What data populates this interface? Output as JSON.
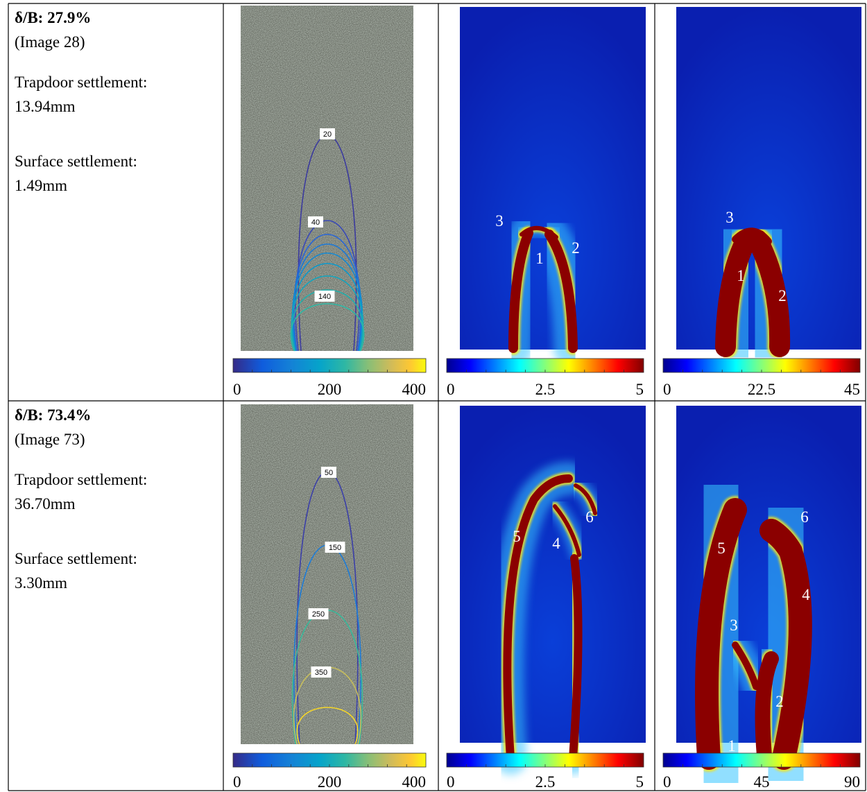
{
  "rows": [
    {
      "title": "δ/B: 27.9%",
      "image": "(Image 28)",
      "trapdoor_label": "Trapdoor settlement:",
      "trapdoor_value": "13.94mm",
      "surface_label": "Surface settlement:",
      "surface_value": "1.49mm",
      "contour_labels": [
        "20",
        "40",
        "140"
      ],
      "colorbars": [
        [
          "0",
          "200",
          "400"
        ],
        [
          "0",
          "2.5",
          "5"
        ],
        [
          "0",
          "22.5",
          "45"
        ]
      ],
      "strain_labels": [
        "3",
        "1",
        "2"
      ],
      "shear_labels": [
        "3",
        "1",
        "2"
      ]
    },
    {
      "title": "δ/B: 73.4%",
      "image": "(Image 73)",
      "trapdoor_label": "Trapdoor settlement:",
      "trapdoor_value": "36.70mm",
      "surface_label": "Surface settlement:",
      "surface_value": "3.30mm",
      "contour_labels": [
        "50",
        "150",
        "250",
        "350"
      ],
      "colorbars": [
        [
          "0",
          "200",
          "400"
        ],
        [
          "0",
          "2.5",
          "5"
        ],
        [
          "0",
          "45",
          "90"
        ]
      ],
      "strain_labels": [
        "5",
        "4",
        "6"
      ],
      "shear_labels": [
        "6",
        "5",
        "4",
        "3",
        "2",
        "1"
      ]
    }
  ]
}
